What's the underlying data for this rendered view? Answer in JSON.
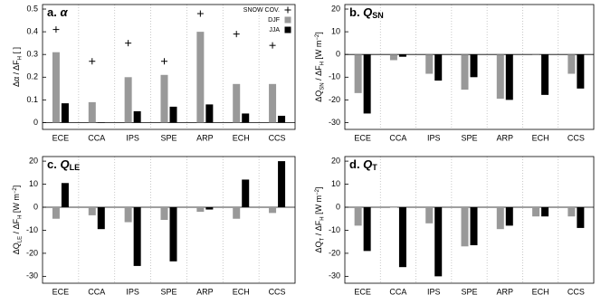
{
  "chart_data": [
    {
      "type": "bar",
      "title": "a. ",
      "title_symbol": "α",
      "ylabel": [
        {
          "text": "Δα / ΔF"
        },
        {
          "text": "H",
          "style": "sub"
        },
        {
          "text": "  [  ]"
        }
      ],
      "categories": [
        "ECE",
        "CCA",
        "IPS",
        "SPE",
        "ARP",
        "ECH",
        "CCS"
      ],
      "series": [
        {
          "name": "SNOW COV.",
          "color": "#000000",
          "marker": "+",
          "values": [
            0.41,
            0.27,
            0.35,
            0.27,
            0.48,
            0.39,
            0.34
          ]
        },
        {
          "name": "DJF",
          "color": "#999999",
          "values": [
            0.31,
            0.09,
            0.2,
            0.21,
            0.4,
            0.17,
            0.17
          ]
        },
        {
          "name": "JJA",
          "color": "#000000",
          "values": [
            0.085,
            -0.002,
            0.05,
            0.07,
            0.08,
            0.04,
            0.03
          ]
        }
      ],
      "ylim": [
        -0.03,
        0.52
      ],
      "yticks": [
        0,
        0.1,
        0.2,
        0.3,
        0.4,
        0.5
      ],
      "grid": true,
      "legend": "upper right"
    },
    {
      "type": "bar",
      "title": "b. ",
      "title_symbol": "Q",
      "title_subscript": "SN",
      "ylabel": [
        {
          "text": "ΔQ"
        },
        {
          "text": "SN",
          "style": "sub"
        },
        {
          "text": " / ΔF"
        },
        {
          "text": "H",
          "style": "sub"
        },
        {
          "text": " [W m"
        },
        {
          "text": "−2",
          "style": "sup"
        },
        {
          "text": "]"
        }
      ],
      "categories": [
        "ECE",
        "CCA",
        "IPS",
        "SPE",
        "ARP",
        "ECH",
        "CCS"
      ],
      "series": [
        {
          "color": "#999999",
          "values": [
            -17,
            -2.5,
            -8.5,
            -15.5,
            -19.5,
            -0.3,
            -8.5
          ]
        },
        {
          "color": "#000000",
          "values": [
            -26,
            -1,
            -11.5,
            -10,
            -20,
            -17.8,
            -15
          ]
        }
      ],
      "ylim": [
        -33,
        22
      ],
      "yticks": [
        -30,
        -20,
        -10,
        0,
        10,
        20
      ],
      "grid": true
    },
    {
      "type": "bar",
      "title": "c. ",
      "title_symbol": "Q",
      "title_subscript": "LE",
      "ylabel": [
        {
          "text": "ΔQ"
        },
        {
          "text": "LE",
          "style": "sub"
        },
        {
          "text": " / ΔF"
        },
        {
          "text": "H",
          "style": "sub"
        },
        {
          "text": " [W m"
        },
        {
          "text": "−2",
          "style": "sup"
        },
        {
          "text": "]"
        }
      ],
      "categories": [
        "ECE",
        "CCA",
        "IPS",
        "SPE",
        "ARP",
        "ECH",
        "CCS"
      ],
      "series": [
        {
          "color": "#999999",
          "values": [
            -5,
            -3.5,
            -6.5,
            -5.5,
            -2,
            -5,
            -2.5
          ]
        },
        {
          "color": "#000000",
          "values": [
            10.5,
            -9.5,
            -25.5,
            -23.5,
            -1,
            12,
            20
          ]
        }
      ],
      "ylim": [
        -33,
        22
      ],
      "yticks": [
        -30,
        -20,
        -10,
        0,
        10,
        20
      ],
      "grid": true
    },
    {
      "type": "bar",
      "title": "d. ",
      "title_symbol": "Q",
      "title_subscript": "T",
      "ylabel": [
        {
          "text": "ΔQ"
        },
        {
          "text": "T",
          "style": "sub"
        },
        {
          "text": " / ΔF"
        },
        {
          "text": "H",
          "style": "sub"
        },
        {
          "text": " [W m"
        },
        {
          "text": "−2",
          "style": "sup"
        },
        {
          "text": "]"
        }
      ],
      "categories": [
        "ECE",
        "CCA",
        "IPS",
        "SPE",
        "ARP",
        "ECH",
        "CCS"
      ],
      "series": [
        {
          "color": "#999999",
          "values": [
            -8,
            0,
            -7,
            -17,
            -9.5,
            -4,
            -4
          ]
        },
        {
          "color": "#000000",
          "values": [
            -19,
            -26,
            -30,
            -16.5,
            -8,
            -4,
            -9
          ]
        }
      ],
      "ylim": [
        -33,
        22
      ],
      "yticks": [
        -30,
        -20,
        -10,
        0,
        10,
        20
      ],
      "grid": true
    }
  ]
}
